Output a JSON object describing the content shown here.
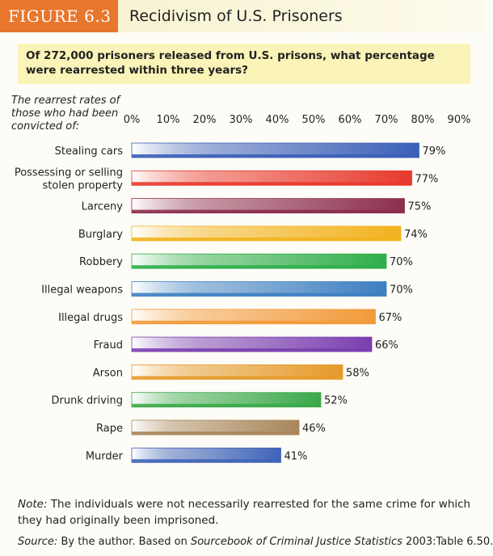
{
  "figure": {
    "label": "FIGURE 6.3",
    "title": "Recidivism of U.S. Prisoners",
    "question": "Of 272,000 prisoners released from U.S. prisons, what percentage were rearrested within three years?",
    "axis_caption": "The rearrest rates of those who had been convicted of:"
  },
  "footer": {
    "note_label": "Note:",
    "note_text": "The individuals were not necessarily rearrested for the same crime for which they had originally been imprisoned.",
    "source_label": "Source:",
    "source_pre": "By the author. Based on",
    "source_title": "Sourcebook of Criminal Justice Statistics",
    "source_post": "2003:Table 6.50."
  },
  "chart_data": {
    "type": "bar",
    "orientation": "horizontal",
    "title": "Recidivism of U.S. Prisoners",
    "xlim": [
      0,
      90
    ],
    "ticks": [
      0,
      10,
      20,
      30,
      40,
      50,
      60,
      70,
      80,
      90
    ],
    "tick_suffix": "%",
    "categories": [
      [
        "Stealing cars"
      ],
      [
        "Possessing or selling",
        "stolen property"
      ],
      [
        "Larceny"
      ],
      [
        "Burglary"
      ],
      [
        "Robbery"
      ],
      [
        "Illegal weapons"
      ],
      [
        "Illegal drugs"
      ],
      [
        "Fraud"
      ],
      [
        "Arson"
      ],
      [
        "Drunk driving"
      ],
      [
        "Rape"
      ],
      [
        "Murder"
      ]
    ],
    "values": [
      79,
      77,
      75,
      74,
      70,
      70,
      67,
      66,
      58,
      52,
      46,
      41
    ],
    "value_labels": [
      "79%",
      "77%",
      "75%",
      "74%",
      "70%",
      "70%",
      "67%",
      "66%",
      "58%",
      "52%",
      "46%",
      "41%"
    ],
    "colors": [
      "#3b5fb8",
      "#e8392d",
      "#8c2e4e",
      "#f2b21d",
      "#2fae4a",
      "#3d7fc2",
      "#f29a3a",
      "#7a3fb0",
      "#e59a2a",
      "#3aa84a",
      "#a8865a",
      "#3f63b8"
    ]
  }
}
